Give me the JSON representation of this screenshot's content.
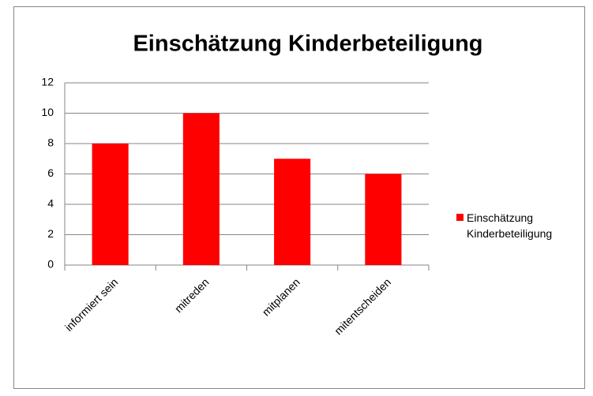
{
  "chart_data": {
    "type": "bar",
    "title": "Einschätzung Kinderbeteiligung",
    "categories": [
      "informiert sein",
      "mitreden",
      "mitplanen",
      "mitentscheiden"
    ],
    "series": [
      {
        "name": "Einschätzung Kinderbeteiligung",
        "color": "#ff0000",
        "values": [
          8,
          10,
          7,
          6
        ]
      }
    ],
    "ylim": [
      0,
      12
    ],
    "yticks": [
      0,
      2,
      4,
      6,
      8,
      10,
      12
    ],
    "grid": true,
    "legend": "right"
  }
}
